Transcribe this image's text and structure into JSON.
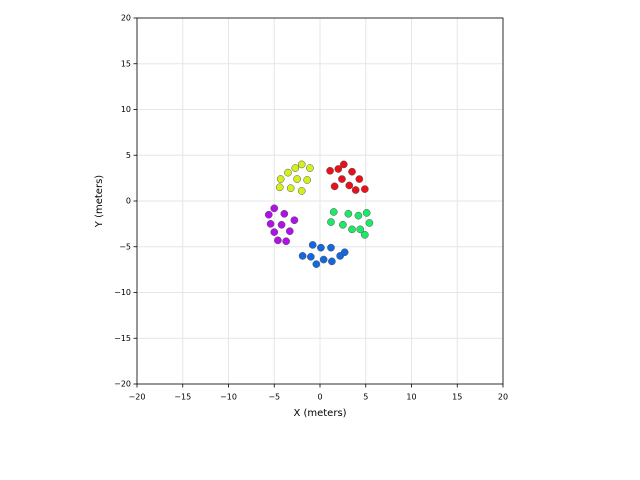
{
  "chart_data": {
    "type": "scatter",
    "xlabel": "X (meters)",
    "ylabel": "Y (meters)",
    "xlim": [
      -20,
      20
    ],
    "ylim": [
      -20,
      20
    ],
    "xticks": [
      {
        "value": -20,
        "label": "−20"
      },
      {
        "value": -15,
        "label": "−15"
      },
      {
        "value": -10,
        "label": "−10"
      },
      {
        "value": -5,
        "label": "−5"
      },
      0,
      5,
      10,
      15,
      20
    ],
    "yticks": [
      {
        "value": -20,
        "label": "−20"
      },
      {
        "value": -15,
        "label": "−15"
      },
      {
        "value": -10,
        "label": "−10"
      },
      {
        "value": -5,
        "label": "−5"
      },
      0,
      5,
      10,
      15,
      20
    ],
    "grid": true,
    "series": [
      {
        "color": "#e8101a",
        "x": [
          1.1,
          2.0,
          2.6,
          3.5,
          2.4,
          4.3,
          1.6,
          3.2,
          3.9,
          4.9
        ],
        "values": [
          3.3,
          3.5,
          4.0,
          3.2,
          2.4,
          2.4,
          1.6,
          1.7,
          1.2,
          1.3
        ]
      },
      {
        "color": "#d4f01c",
        "x": [
          -2.0,
          -1.1,
          -2.7,
          -3.5,
          -4.3,
          -2.5,
          -1.4,
          -4.4,
          -3.2,
          -2.0
        ],
        "values": [
          4.0,
          3.6,
          3.6,
          3.1,
          2.4,
          2.4,
          2.3,
          1.5,
          1.4,
          1.1
        ]
      },
      {
        "color": "#b010ea",
        "x": [
          -5.0,
          -3.9,
          -5.6,
          -2.8,
          -5.4,
          -4.2,
          -3.3,
          -5.0,
          -4.6,
          -3.7
        ],
        "values": [
          -0.8,
          -1.4,
          -1.5,
          -2.1,
          -2.5,
          -2.6,
          -3.3,
          -3.4,
          -4.3,
          -4.4
        ]
      },
      {
        "color": "#1ee86a",
        "x": [
          1.5,
          3.1,
          4.2,
          5.1,
          1.2,
          2.5,
          3.5,
          4.4,
          5.4,
          4.9
        ],
        "values": [
          -1.2,
          -1.4,
          -1.6,
          -1.3,
          -2.3,
          -2.6,
          -3.1,
          -3.1,
          -2.4,
          -3.7
        ]
      },
      {
        "color": "#1268e0",
        "x": [
          -0.8,
          0.1,
          1.2,
          -1.9,
          -1.0,
          2.7,
          2.2,
          0.4,
          1.3,
          -0.4
        ],
        "values": [
          -4.8,
          -5.1,
          -5.1,
          -6.0,
          -6.1,
          -5.6,
          -6.0,
          -6.4,
          -6.6,
          -6.9
        ]
      }
    ]
  }
}
